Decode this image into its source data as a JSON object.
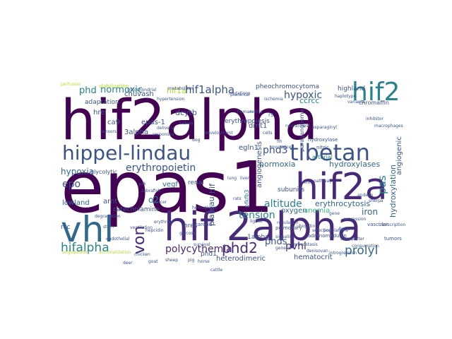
{
  "colors": {
    "background": "#ffffff",
    "purple": "#440154",
    "indigo": "#482878",
    "blue": "#3b528b",
    "slate": "#31688e",
    "teal": "#26828e",
    "green": "#35b779",
    "lime": "#6ece58",
    "yellow": "#b5de2b"
  },
  "words": [
    {
      "text": "hif2alpha",
      "color": "purple"
    },
    {
      "text": "epas1",
      "color": "purple"
    },
    {
      "text": "hif 2alpha",
      "color": "indigo"
    },
    {
      "text": "hif2a",
      "color": "indigo"
    },
    {
      "text": "vhl",
      "color": "slate"
    },
    {
      "text": "hif2",
      "color": "teal"
    },
    {
      "text": "hippel-lindau",
      "color": "blue"
    },
    {
      "text": "tibetan",
      "color": "blue"
    },
    {
      "text": "von",
      "color": "indigo"
    },
    {
      "text": "hifalpha",
      "color": "teal"
    },
    {
      "text": "phd2",
      "color": "indigo"
    },
    {
      "text": "prolyl",
      "color": "slate"
    },
    {
      "text": "erythropoietin",
      "color": "blue"
    },
    {
      "text": "hif1alpha",
      "color": "blue"
    },
    {
      "text": "polycythemia",
      "color": "indigo"
    },
    {
      "text": "normoxic",
      "color": "teal"
    },
    {
      "text": "hypoxic",
      "color": "blue"
    },
    {
      "text": "altitude",
      "color": "teal"
    },
    {
      "text": "pas",
      "color": "teal"
    },
    {
      "text": "phd3",
      "color": "blue"
    },
    {
      "text": "tension",
      "color": "teal"
    },
    {
      "text": "epo",
      "color": "blue"
    },
    {
      "text": "hypoxia",
      "color": "slate"
    },
    {
      "text": "phd",
      "color": "teal"
    },
    {
      "text": "normoxia",
      "color": "slate"
    },
    {
      "text": "hif1a",
      "color": "yellow"
    },
    {
      "text": "pvhl",
      "color": "indigo"
    },
    {
      "text": "phds",
      "color": "blue"
    },
    {
      "text": "erythrocytosis",
      "color": "slate"
    },
    {
      "text": "iron",
      "color": "slate"
    },
    {
      "text": "hydroxylation",
      "color": "slate"
    },
    {
      "text": "hydroxylases",
      "color": "slate"
    },
    {
      "text": "angiogenesis",
      "color": "blue"
    },
    {
      "text": "oxygen",
      "color": "slate"
    },
    {
      "text": "chuvash",
      "color": "blue"
    },
    {
      "text": "adaptation",
      "color": "blue"
    },
    {
      "text": "hre",
      "color": "blue"
    },
    {
      "text": "dcytb",
      "color": "blue"
    },
    {
      "text": "dmt1",
      "color": "blue"
    },
    {
      "text": "egln1",
      "color": "blue"
    },
    {
      "text": "ccrcc",
      "color": "teal"
    },
    {
      "text": "highland",
      "color": "blue"
    },
    {
      "text": "erythropoiesis",
      "color": "blue"
    },
    {
      "text": "epas-1",
      "color": "blue"
    },
    {
      "text": "3alpha",
      "color": "blue"
    },
    {
      "text": "ca9",
      "color": "blue"
    },
    {
      "text": "vegf",
      "color": "slate"
    },
    {
      "text": "o2",
      "color": "teal"
    },
    {
      "text": "arnt",
      "color": "blue"
    },
    {
      "text": "catecholamine",
      "color": "blue"
    },
    {
      "text": "lowland",
      "color": "slate"
    },
    {
      "text": "plateau",
      "color": "blue"
    },
    {
      "text": "1alpha",
      "color": "blue"
    },
    {
      "text": "heterodimeric",
      "color": "blue"
    },
    {
      "text": "hematocrit",
      "color": "blue"
    },
    {
      "text": "angiogenic",
      "color": "blue"
    },
    {
      "text": "anemia",
      "color": "green"
    },
    {
      "text": "hif",
      "color": "blue"
    },
    {
      "text": "pheochromocytoma",
      "color": "blue"
    },
    {
      "text": "rcc",
      "color": "blue"
    },
    {
      "text": "subunits",
      "color": "blue"
    },
    {
      "text": "renal",
      "color": "blue"
    },
    {
      "text": "hres",
      "color": "blue"
    },
    {
      "text": "glycolytic",
      "color": "blue"
    },
    {
      "text": "pfkfb3",
      "color": "teal"
    },
    {
      "text": "phd1",
      "color": "blue"
    },
    {
      "text": "arterial",
      "color": "teal"
    },
    {
      "text": "chromaffin",
      "color": "blue"
    },
    {
      "text": "nitric",
      "color": "blue"
    },
    {
      "text": "hydroxylase",
      "color": "blue"
    },
    {
      "text": "paraganglioma",
      "color": "blue"
    },
    {
      "text": "rs",
      "color": "teal"
    },
    {
      "text": "pulmonary",
      "color": "blue"
    },
    {
      "text": "stabilization",
      "color": "yellow"
    },
    {
      "text": "vascular",
      "color": "blue"
    },
    {
      "text": "tumors",
      "color": "blue"
    },
    {
      "text": "carotid",
      "color": "blue"
    },
    {
      "text": "perfusion",
      "color": "yellow"
    },
    {
      "text": "adrenomedullin",
      "color": "blue"
    },
    {
      "text": "ischemia",
      "color": "blue"
    },
    {
      "text": "metabolism",
      "color": "blue"
    },
    {
      "text": "mutations",
      "color": "blue"
    },
    {
      "text": "sensors",
      "color": "blue"
    },
    {
      "text": "kidney",
      "color": "blue"
    },
    {
      "text": "hypertension",
      "color": "blue"
    },
    {
      "text": "macrophages",
      "color": "blue"
    },
    {
      "text": "inhibitor",
      "color": "blue"
    },
    {
      "text": "transcription",
      "color": "blue"
    },
    {
      "text": "hepcidin",
      "color": "blue"
    },
    {
      "text": "erythroid",
      "color": "blue"
    },
    {
      "text": "consumption",
      "color": "blue"
    },
    {
      "text": "angiopoietin",
      "color": "yellow"
    },
    {
      "text": "delivery",
      "color": "blue"
    },
    {
      "text": "signaling",
      "color": "blue"
    },
    {
      "text": "stem",
      "color": "blue"
    },
    {
      "text": "endothelial",
      "color": "blue"
    },
    {
      "text": "glucose",
      "color": "blue"
    },
    {
      "text": "ferritin",
      "color": "blue"
    },
    {
      "text": "transporter",
      "color": "blue"
    },
    {
      "text": "acclimatization",
      "color": "yellow"
    },
    {
      "text": "hemoglobin",
      "color": "blue"
    },
    {
      "text": "ventilation",
      "color": "blue"
    },
    {
      "text": "placental",
      "color": "blue"
    },
    {
      "text": "mitochondrial",
      "color": "blue"
    },
    {
      "text": "ligase",
      "color": "blue"
    },
    {
      "text": "ubiquitin",
      "color": "blue"
    },
    {
      "text": "degradation",
      "color": "blue"
    },
    {
      "text": "asparaginyl",
      "color": "blue"
    },
    {
      "text": "fih",
      "color": "blue"
    },
    {
      "text": "regulation",
      "color": "blue"
    },
    {
      "text": "homeostasis",
      "color": "blue"
    },
    {
      "text": "responses",
      "color": "blue"
    },
    {
      "text": "survival",
      "color": "blue"
    },
    {
      "text": "development",
      "color": "blue"
    },
    {
      "text": "cancer",
      "color": "blue"
    },
    {
      "text": "lung",
      "color": "blue"
    },
    {
      "text": "liver",
      "color": "blue"
    },
    {
      "text": "retina",
      "color": "blue"
    },
    {
      "text": "neural",
      "color": "blue"
    },
    {
      "text": "crest",
      "color": "blue"
    },
    {
      "text": "cells",
      "color": "blue"
    },
    {
      "text": "erk",
      "color": "blue"
    },
    {
      "text": "pathway",
      "color": "blue"
    },
    {
      "text": "gene",
      "color": "blue"
    },
    {
      "text": "expression",
      "color": "blue"
    },
    {
      "text": "selection",
      "color": "blue"
    },
    {
      "text": "variants",
      "color": "blue"
    },
    {
      "text": "haplotype",
      "color": "blue"
    },
    {
      "text": "populations",
      "color": "blue"
    },
    {
      "text": "andean",
      "color": "blue"
    },
    {
      "text": "sherpa",
      "color": "blue"
    },
    {
      "text": "denisovan",
      "color": "blue"
    },
    {
      "text": "introgression",
      "color": "blue"
    },
    {
      "text": "genetic",
      "color": "blue"
    },
    {
      "text": "human",
      "color": "blue"
    },
    {
      "text": "mouse",
      "color": "blue"
    },
    {
      "text": "mice",
      "color": "blue"
    },
    {
      "text": "rats",
      "color": "blue"
    },
    {
      "text": "zebrafish",
      "color": "blue"
    },
    {
      "text": "yak",
      "color": "blue"
    },
    {
      "text": "dog",
      "color": "blue"
    },
    {
      "text": "chicken",
      "color": "blue"
    },
    {
      "text": "deer",
      "color": "blue"
    },
    {
      "text": "goat",
      "color": "blue"
    },
    {
      "text": "sheep",
      "color": "blue"
    },
    {
      "text": "pig",
      "color": "blue"
    },
    {
      "text": "horse",
      "color": "blue"
    },
    {
      "text": "cattle",
      "color": "blue"
    }
  ]
}
